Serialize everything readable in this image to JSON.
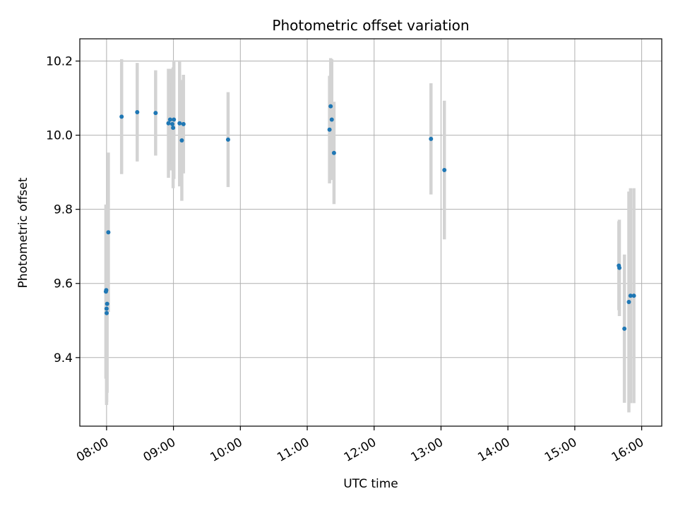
{
  "chart_data": {
    "type": "scatter",
    "title": "Photometric offset variation",
    "xlabel": "UTC time",
    "ylabel": "Photometric offset",
    "x_axis": "time",
    "xlim": [
      "07:36",
      "16:18"
    ],
    "ylim": [
      9.215,
      10.26
    ],
    "grid": true,
    "x_ticks": [
      "08:00",
      "09:00",
      "10:00",
      "11:00",
      "12:00",
      "13:00",
      "14:00",
      "15:00",
      "16:00"
    ],
    "y_ticks": [
      "9.4",
      "9.6",
      "9.8",
      "10.0",
      "10.2"
    ],
    "colors": {
      "points": "#1f77b4",
      "error_bars": "#d3d3d3",
      "grid": "#b0b0b0"
    },
    "points": [
      {
        "x": "07:59:24",
        "y": 9.578,
        "err": 0.235
      },
      {
        "x": "07:59:42",
        "y": 9.582,
        "err": 0.23
      },
      {
        "x": "08:00:00",
        "y": 9.532,
        "err": 0.26
      },
      {
        "x": "08:00:06",
        "y": 9.52,
        "err": 0.24
      },
      {
        "x": "08:00:30",
        "y": 9.545,
        "err": 0.24
      },
      {
        "x": "08:01:36",
        "y": 9.738,
        "err": 0.215
      },
      {
        "x": "08:13:30",
        "y": 10.05,
        "err": 0.155
      },
      {
        "x": "08:27:30",
        "y": 10.062,
        "err": 0.133
      },
      {
        "x": "08:44:00",
        "y": 10.06,
        "err": 0.115
      },
      {
        "x": "08:55:30",
        "y": 10.032,
        "err": 0.147
      },
      {
        "x": "08:57:00",
        "y": 10.042,
        "err": 0.137
      },
      {
        "x": "08:59:00",
        "y": 10.03,
        "err": 0.11
      },
      {
        "x": "08:59:42",
        "y": 10.02,
        "err": 0.163
      },
      {
        "x": "09:00:24",
        "y": 10.042,
        "err": 0.16
      },
      {
        "x": "09:05:30",
        "y": 10.032,
        "err": 0.17
      },
      {
        "x": "09:07:30",
        "y": 9.986,
        "err": 0.163
      },
      {
        "x": "09:09:00",
        "y": 10.03,
        "err": 0.133
      },
      {
        "x": "09:49:00",
        "y": 9.988,
        "err": 0.128
      },
      {
        "x": "11:20:00",
        "y": 10.015,
        "err": 0.145
      },
      {
        "x": "11:21:00",
        "y": 10.078,
        "err": 0.13
      },
      {
        "x": "11:22:00",
        "y": 10.042,
        "err": 0.163
      },
      {
        "x": "11:24:00",
        "y": 9.952,
        "err": 0.138
      },
      {
        "x": "12:51:00",
        "y": 9.99,
        "err": 0.15
      },
      {
        "x": "13:03:00",
        "y": 9.906,
        "err": 0.187
      },
      {
        "x": "15:39:30",
        "y": 9.648,
        "err": 0.12
      },
      {
        "x": "15:40:00",
        "y": 9.642,
        "err": 0.13
      },
      {
        "x": "15:44:30",
        "y": 9.478,
        "err": 0.2
      },
      {
        "x": "15:48:30",
        "y": 9.55,
        "err": 0.298
      },
      {
        "x": "15:50:00",
        "y": 9.567,
        "err": 0.29
      },
      {
        "x": "15:53:00",
        "y": 9.567,
        "err": 0.29
      }
    ]
  }
}
